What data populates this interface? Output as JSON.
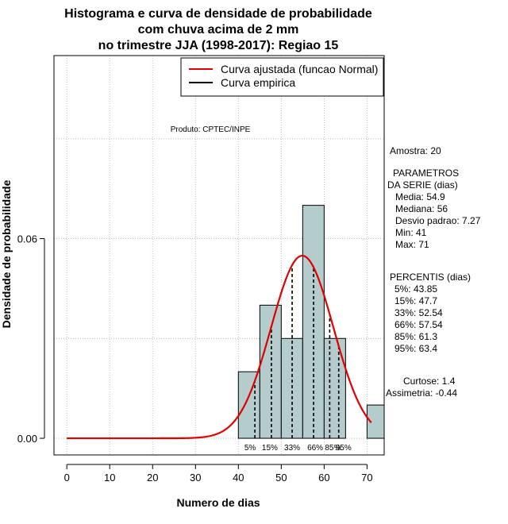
{
  "chart_data": {
    "type": "bar",
    "title_lines": [
      "Histograma e curva de densidade de probabilidade",
      "com chuva acima de 2 mm",
      "no trimestre JJA (1998-2017): Regiao 15"
    ],
    "xlabel": "Numero de dias",
    "ylabel": "Densidade de probabilidade",
    "xlim": [
      -3,
      74
    ],
    "ylim": [
      -0.005,
      0.115
    ],
    "x_ticks": [
      0,
      10,
      20,
      30,
      40,
      50,
      60,
      70
    ],
    "y_ticks": [
      0.0,
      0.06
    ],
    "y_tick_labels": [
      "0.00",
      "0.06"
    ],
    "bins": [
      {
        "from": 40,
        "to": 45,
        "density": 0.02
      },
      {
        "from": 45,
        "to": 50,
        "density": 0.04
      },
      {
        "from": 50,
        "to": 55,
        "density": 0.03
      },
      {
        "from": 55,
        "to": 60,
        "density": 0.07
      },
      {
        "from": 60,
        "to": 65,
        "density": 0.03
      },
      {
        "from": 70,
        "to": 75,
        "density": 0.01
      }
    ],
    "bar_color": "#b4cccc",
    "fitted_color": "#e00000",
    "normal_fit": {
      "mean": 54.9,
      "sd": 7.27,
      "x_start": 0,
      "x_end": 71
    },
    "percentile_lines": [
      {
        "label": "5%",
        "x": 43.85
      },
      {
        "label": "15%",
        "x": 47.7
      },
      {
        "label": "33%",
        "x": 52.54
      },
      {
        "label": "66%",
        "x": 57.54
      },
      {
        "label": "85%",
        "x": 61.3
      },
      {
        "label": "95%",
        "x": 63.4
      }
    ],
    "legend": [
      {
        "label": "Curva ajustada (funcao Normal)",
        "color": "#e00000"
      },
      {
        "label": "Curva empirica",
        "color": "#000000"
      }
    ],
    "legend_position": "top-right",
    "grid": true
  },
  "annotations": {
    "produto": "Produto: CPTEC/INPE",
    "amostra": "Amostra: 20",
    "parametros_title_1": "PARAMETROS",
    "parametros_title_2": "DA SERIE (dias)",
    "media": "Media: 54.9",
    "mediana": "Mediana: 56",
    "desvio": "Desvio padrao: 7.27",
    "min": "Min: 41",
    "max": "Max: 71",
    "percentis_title": "PERCENTIS (dias)",
    "p5": "5%: 43.85",
    "p15": "15%: 47.7",
    "p33": "33%: 52.54",
    "p66": "66%: 57.54",
    "p85": "85%: 61.3",
    "p95": "95%: 63.4",
    "curtose": "Curtose: 1.4",
    "assimetria": "Assimetria: -0.44"
  }
}
